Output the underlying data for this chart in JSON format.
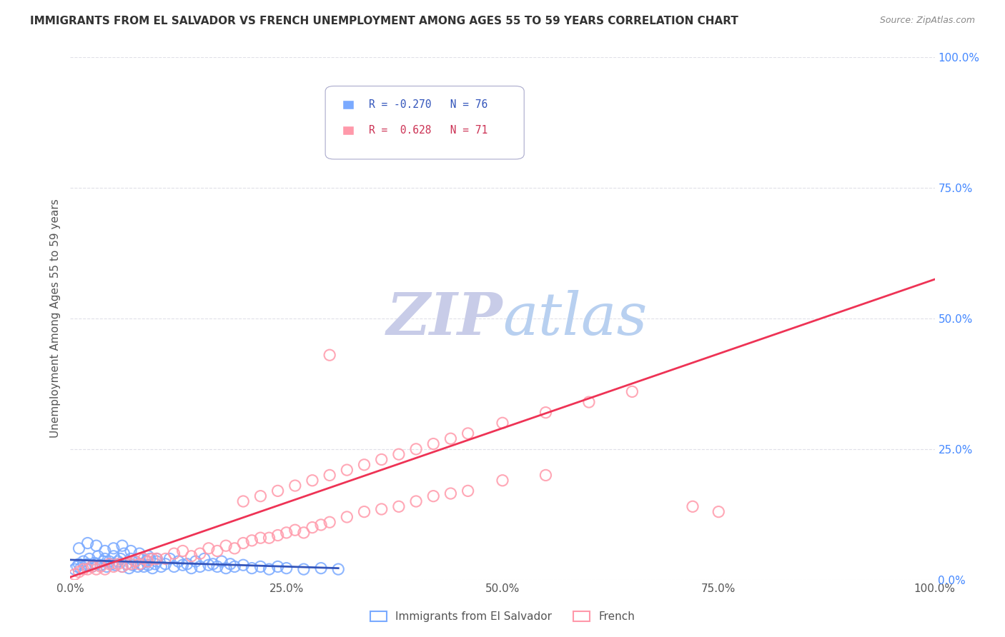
{
  "title": "IMMIGRANTS FROM EL SALVADOR VS FRENCH UNEMPLOYMENT AMONG AGES 55 TO 59 YEARS CORRELATION CHART",
  "source": "Source: ZipAtlas.com",
  "ylabel": "Unemployment Among Ages 55 to 59 years",
  "xlabel": "",
  "xlim": [
    0.0,
    1.0
  ],
  "ylim": [
    0.0,
    1.0
  ],
  "xtick_labels": [
    "0.0%",
    "25.0%",
    "50.0%",
    "75.0%",
    "100.0%"
  ],
  "xtick_values": [
    0.0,
    0.25,
    0.5,
    0.75,
    1.0
  ],
  "ytick_labels": [
    "0.0%",
    "25.0%",
    "50.0%",
    "75.0%",
    "100.0%"
  ],
  "ytick_values": [
    0.0,
    0.25,
    0.5,
    0.75,
    1.0
  ],
  "legend1_R": "-0.270",
  "legend1_N": "76",
  "legend2_R": "0.628",
  "legend2_N": "71",
  "blue_color": "#7aaaff",
  "pink_color": "#ff99aa",
  "blue_line_color": "#3355bb",
  "pink_line_color": "#ee3355",
  "watermark_zip_color": "#c8cce8",
  "watermark_atlas_color": "#b8d0f0",
  "background_color": "#ffffff",
  "grid_color": "#e0e0e8",
  "blue_scatter_x": [
    0.005,
    0.008,
    0.01,
    0.012,
    0.015,
    0.018,
    0.02,
    0.022,
    0.025,
    0.028,
    0.03,
    0.032,
    0.035,
    0.038,
    0.04,
    0.042,
    0.045,
    0.048,
    0.05,
    0.052,
    0.055,
    0.058,
    0.06,
    0.062,
    0.065,
    0.068,
    0.07,
    0.072,
    0.075,
    0.078,
    0.08,
    0.082,
    0.085,
    0.088,
    0.09,
    0.092,
    0.095,
    0.098,
    0.1,
    0.105,
    0.11,
    0.115,
    0.12,
    0.125,
    0.13,
    0.135,
    0.14,
    0.145,
    0.15,
    0.155,
    0.16,
    0.165,
    0.17,
    0.175,
    0.18,
    0.185,
    0.19,
    0.2,
    0.21,
    0.22,
    0.23,
    0.24,
    0.25,
    0.27,
    0.29,
    0.31,
    0.01,
    0.02,
    0.03,
    0.04,
    0.05,
    0.06,
    0.07,
    0.08,
    0.09,
    0.1
  ],
  "blue_scatter_y": [
    0.02,
    0.025,
    0.03,
    0.022,
    0.035,
    0.028,
    0.03,
    0.04,
    0.025,
    0.032,
    0.03,
    0.045,
    0.028,
    0.035,
    0.04,
    0.025,
    0.035,
    0.03,
    0.045,
    0.028,
    0.035,
    0.04,
    0.025,
    0.05,
    0.03,
    0.022,
    0.04,
    0.028,
    0.035,
    0.025,
    0.04,
    0.03,
    0.025,
    0.035,
    0.028,
    0.04,
    0.022,
    0.03,
    0.035,
    0.025,
    0.03,
    0.04,
    0.025,
    0.035,
    0.028,
    0.03,
    0.022,
    0.035,
    0.025,
    0.04,
    0.028,
    0.03,
    0.025,
    0.035,
    0.022,
    0.03,
    0.025,
    0.028,
    0.022,
    0.025,
    0.02,
    0.025,
    0.022,
    0.02,
    0.022,
    0.02,
    0.06,
    0.07,
    0.065,
    0.055,
    0.06,
    0.065,
    0.055,
    0.05,
    0.045,
    0.04
  ],
  "pink_scatter_x": [
    0.005,
    0.01,
    0.015,
    0.02,
    0.025,
    0.03,
    0.035,
    0.04,
    0.045,
    0.05,
    0.055,
    0.06,
    0.065,
    0.07,
    0.075,
    0.08,
    0.085,
    0.09,
    0.095,
    0.1,
    0.11,
    0.12,
    0.13,
    0.14,
    0.15,
    0.16,
    0.17,
    0.18,
    0.19,
    0.2,
    0.21,
    0.22,
    0.23,
    0.24,
    0.25,
    0.26,
    0.27,
    0.28,
    0.29,
    0.3,
    0.32,
    0.34,
    0.36,
    0.38,
    0.4,
    0.42,
    0.44,
    0.46,
    0.5,
    0.55,
    0.2,
    0.22,
    0.24,
    0.26,
    0.28,
    0.3,
    0.32,
    0.34,
    0.36,
    0.38,
    0.4,
    0.42,
    0.44,
    0.46,
    0.5,
    0.55,
    0.6,
    0.65,
    0.72,
    0.75,
    0.3
  ],
  "pink_scatter_y": [
    0.01,
    0.015,
    0.02,
    0.02,
    0.025,
    0.02,
    0.025,
    0.02,
    0.03,
    0.025,
    0.03,
    0.025,
    0.03,
    0.03,
    0.035,
    0.03,
    0.04,
    0.035,
    0.04,
    0.04,
    0.04,
    0.05,
    0.055,
    0.045,
    0.05,
    0.06,
    0.055,
    0.065,
    0.06,
    0.07,
    0.075,
    0.08,
    0.08,
    0.085,
    0.09,
    0.095,
    0.09,
    0.1,
    0.105,
    0.11,
    0.12,
    0.13,
    0.135,
    0.14,
    0.15,
    0.16,
    0.165,
    0.17,
    0.19,
    0.2,
    0.15,
    0.16,
    0.17,
    0.18,
    0.19,
    0.2,
    0.21,
    0.22,
    0.23,
    0.24,
    0.25,
    0.26,
    0.27,
    0.28,
    0.3,
    0.32,
    0.34,
    0.36,
    0.14,
    0.13,
    0.43
  ],
  "blue_trend_x": [
    0.0,
    0.31
  ],
  "blue_trend_y_start": 0.038,
  "blue_trend_y_end": 0.022,
  "pink_trend_x": [
    0.0,
    1.0
  ],
  "pink_trend_y_start": 0.005,
  "pink_trend_y_end": 0.575
}
